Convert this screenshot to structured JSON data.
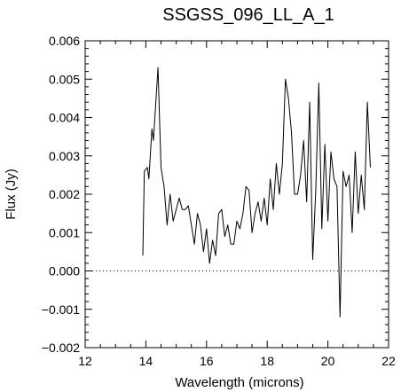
{
  "chart_data": {
    "type": "line",
    "title": "SSGSS_096_LL_A_1",
    "xlabel": "Wavelength (microns)",
    "ylabel": "Flux (Jy)",
    "xlim": [
      12,
      22
    ],
    "ylim": [
      -0.002,
      0.006
    ],
    "x_ticks": [
      12,
      14,
      16,
      18,
      20,
      22
    ],
    "y_ticks": [
      -0.002,
      -0.001,
      0.0,
      0.001,
      0.002,
      0.003,
      0.004,
      0.005,
      0.006
    ],
    "x_tick_labels": [
      "12",
      "14",
      "16",
      "18",
      "20",
      "22"
    ],
    "y_tick_labels": [
      "−0.002",
      "−0.001",
      "0.000",
      "0.001",
      "0.002",
      "0.003",
      "0.004",
      "0.005",
      "0.006"
    ],
    "grid": false,
    "zero_line": "dotted",
    "line_color": "#000000",
    "series": [
      {
        "x": [
          13.9,
          13.95,
          14.05,
          14.1,
          14.2,
          14.25,
          14.4,
          14.5,
          14.6,
          14.7,
          14.8,
          14.9,
          15.0,
          15.1,
          15.2,
          15.3,
          15.4,
          15.5,
          15.6,
          15.7,
          15.8,
          15.9,
          16.0,
          16.1,
          16.2,
          16.3,
          16.4,
          16.5,
          16.6,
          16.7,
          16.8,
          16.9,
          17.0,
          17.1,
          17.2,
          17.3,
          17.4,
          17.5,
          17.6,
          17.7,
          17.8,
          17.9,
          18.0,
          18.1,
          18.2,
          18.3,
          18.4,
          18.5,
          18.6,
          18.7,
          18.8,
          18.9,
          19.0,
          19.1,
          19.2,
          19.3,
          19.4,
          19.5,
          19.6,
          19.7,
          19.8,
          19.9,
          20.0,
          20.1,
          20.2,
          20.3,
          20.4,
          20.5,
          20.6,
          20.7,
          20.8,
          20.9,
          21.0,
          21.1,
          21.2,
          21.3,
          21.4
        ],
        "y": [
          0.0004,
          0.0026,
          0.0027,
          0.0024,
          0.0037,
          0.0034,
          0.0053,
          0.0027,
          0.0022,
          0.0012,
          0.002,
          0.0013,
          0.0016,
          0.0019,
          0.0016,
          0.0016,
          0.0017,
          0.0012,
          0.0007,
          0.0015,
          0.0012,
          0.0005,
          0.0011,
          0.0002,
          0.0008,
          0.0004,
          0.0015,
          0.0016,
          0.0009,
          0.0012,
          0.0007,
          0.0007,
          0.0013,
          0.0011,
          0.0015,
          0.0022,
          0.0021,
          0.001,
          0.0015,
          0.0018,
          0.0013,
          0.0019,
          0.0012,
          0.0024,
          0.0016,
          0.0028,
          0.002,
          0.0028,
          0.005,
          0.0045,
          0.0036,
          0.002,
          0.002,
          0.0025,
          0.0034,
          0.0018,
          0.0044,
          0.0003,
          0.0021,
          0.0049,
          0.0011,
          0.0033,
          0.0013,
          0.0031,
          0.0024,
          0.0022,
          -0.0012,
          0.0026,
          0.0022,
          0.0025,
          0.001,
          0.0031,
          0.0015,
          0.0025,
          0.0016,
          0.0044,
          0.0027
        ]
      }
    ]
  }
}
